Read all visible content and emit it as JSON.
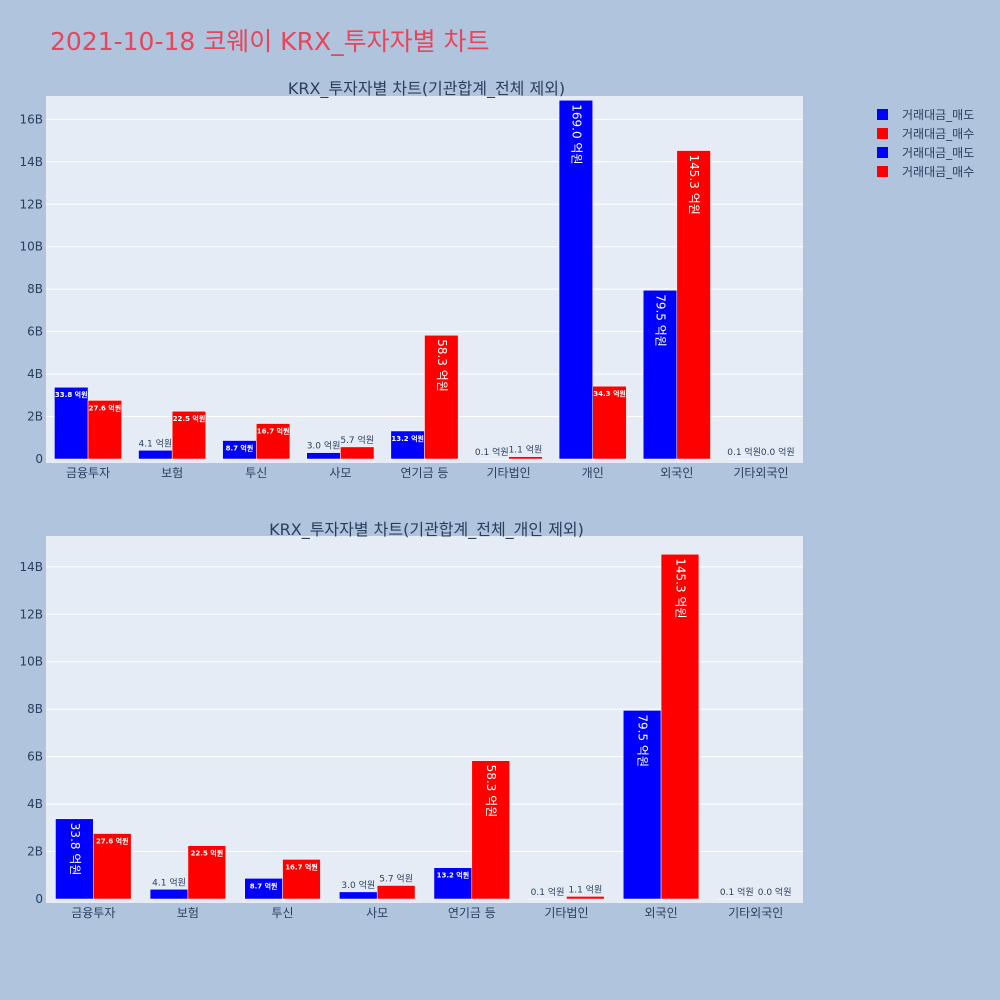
{
  "title": "2021-10-18 코웨이 KRX_투자자별 차트",
  "legend": [
    {
      "label": "거래대금_매도",
      "color": "#0000ff"
    },
    {
      "label": "거래대금_매수",
      "color": "#ff0000"
    },
    {
      "label": "거래대금_매도",
      "color": "#0000ff"
    },
    {
      "label": "거래대금_매수",
      "color": "#ff0000"
    }
  ],
  "chart_data": [
    {
      "type": "bar",
      "title": "KRX_투자자별 차트(기관합계_전체 제외)",
      "categories": [
        "금융투자",
        "보험",
        "투신",
        "사모",
        "연기금 등",
        "기타법인",
        "개인",
        "외국인",
        "기타외국인"
      ],
      "y_ticks": [
        "0",
        "2B",
        "4B",
        "6B",
        "8B",
        "10B",
        "12B",
        "14B",
        "16B"
      ],
      "ylim": [
        0,
        17.1
      ],
      "series": [
        {
          "name": "거래대금_매도",
          "color": "#0000ff",
          "values": [
            3.38,
            0.41,
            0.87,
            0.3,
            1.32,
            0.01,
            16.9,
            7.95,
            0.01
          ],
          "labels": [
            "33.8 억원",
            "4.1 억원",
            "8.7 억원",
            "3.0 억원",
            "13.2 억원",
            "0.1 억원",
            "169.0 억원",
            "79.5 억원",
            "0.1 억원"
          ]
        },
        {
          "name": "거래대금_매수",
          "color": "#ff0000",
          "values": [
            2.76,
            2.25,
            1.67,
            0.57,
            5.83,
            0.11,
            3.43,
            14.53,
            0.0
          ],
          "labels": [
            "27.6 억원",
            "22.5 억원",
            "16.7 억원",
            "5.7 억원",
            "58.3 억원",
            "1.1 억원",
            "34.3 억원",
            "145.3 억원",
            "0.0 억원"
          ]
        }
      ]
    },
    {
      "type": "bar",
      "title": "KRX_투자자별 차트(기관합계_전체_개인 제외)",
      "categories": [
        "금융투자",
        "보험",
        "투신",
        "사모",
        "연기금 등",
        "기타법인",
        "외국인",
        "기타외국인"
      ],
      "y_ticks": [
        "0",
        "2B",
        "4B",
        "6B",
        "8B",
        "10B",
        "12B",
        "14B"
      ],
      "ylim": [
        0,
        15.3
      ],
      "series": [
        {
          "name": "거래대금_매도",
          "color": "#0000ff",
          "values": [
            3.38,
            0.41,
            0.87,
            0.3,
            1.32,
            0.01,
            7.95,
            0.01
          ],
          "labels": [
            "33.8 억원",
            "4.1 억원",
            "8.7 억원",
            "3.0 억원",
            "13.2 억원",
            "0.1 억원",
            "79.5 억원",
            "0.1 억원"
          ]
        },
        {
          "name": "거래대금_매수",
          "color": "#ff0000",
          "values": [
            2.76,
            2.25,
            1.67,
            0.57,
            5.83,
            0.11,
            14.53,
            0.0
          ],
          "labels": [
            "27.6 억원",
            "22.5 억원",
            "16.7 억원",
            "5.7 억원",
            "58.3 억원",
            "1.1 억원",
            "145.3 억원",
            "0.0 억원"
          ]
        }
      ]
    }
  ]
}
